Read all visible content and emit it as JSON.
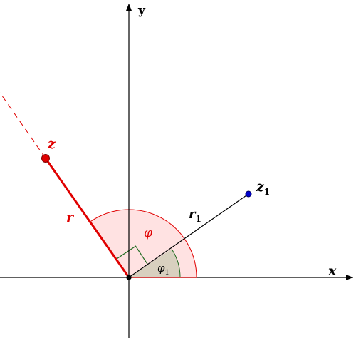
{
  "figure": {
    "axes": {
      "x_label": "x",
      "y_label": "y"
    },
    "points": {
      "z": {
        "label": "z",
        "color": "#e00000"
      },
      "z1": {
        "label": "z",
        "subscript": "1",
        "color": "#0000cc"
      }
    },
    "segments": {
      "r": {
        "label": "r",
        "color": "#e00000"
      },
      "r1": {
        "label": "r",
        "subscript": "1",
        "color": "#000000"
      }
    },
    "angles": {
      "phi": {
        "label": "φ",
        "fill": "#ffe2e2",
        "stroke": "#e00000"
      },
      "phi1": {
        "label": "φ",
        "subscript": "1",
        "fill": "#d8d0bf",
        "stroke": "#1f6b1f"
      }
    },
    "right_angle_marker_color": "#1f6b1f",
    "origin_color": "#000000"
  }
}
